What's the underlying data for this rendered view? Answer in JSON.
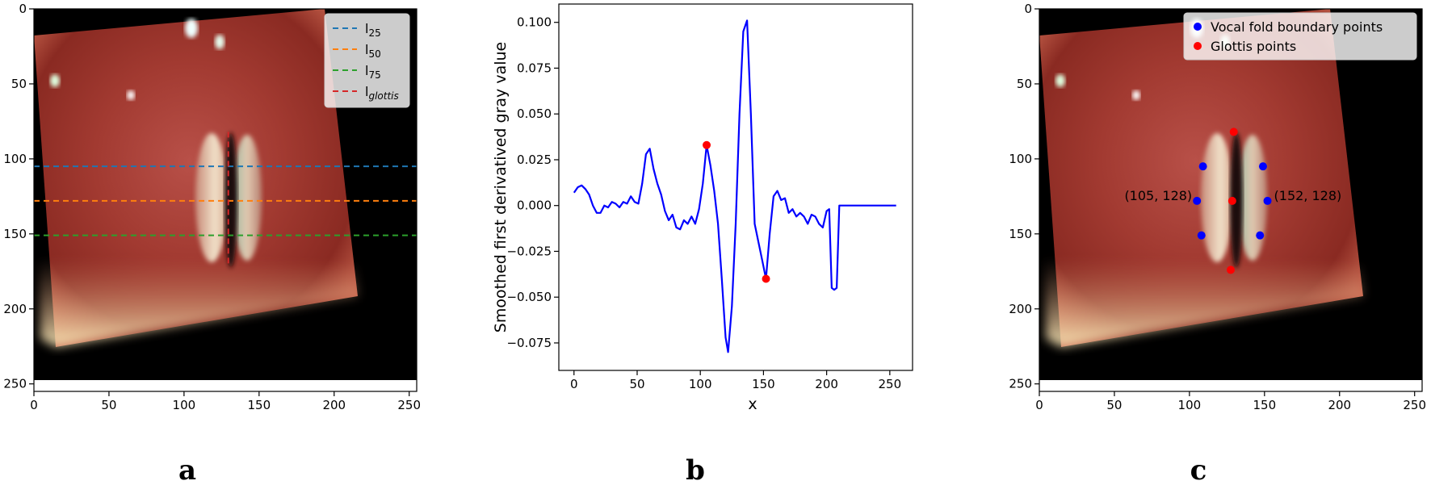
{
  "chart_data": [
    {
      "panel": "a",
      "type": "image",
      "xlim": [
        0,
        255
      ],
      "ylim": [
        255,
        0
      ],
      "xticks": [
        0,
        50,
        100,
        150,
        200,
        250
      ],
      "yticks": [
        0,
        50,
        100,
        150,
        200,
        250
      ],
      "lines": [
        {
          "name_main": "l",
          "name_sub": "25",
          "orientation": "horizontal",
          "value": 105,
          "color": "#1f77b4"
        },
        {
          "name_main": "l",
          "name_sub": "50",
          "orientation": "horizontal",
          "value": 128,
          "color": "#ff7f0e"
        },
        {
          "name_main": "l",
          "name_sub": "75",
          "orientation": "horizontal",
          "value": 151,
          "color": "#2ca02c"
        },
        {
          "name_main": "l",
          "name_sub": "glottis",
          "orientation": "vertical",
          "value": 129.5,
          "color": "#d62728"
        }
      ],
      "legend_position": "upper right",
      "glottis_line_range": [
        82,
        172
      ]
    },
    {
      "panel": "b",
      "type": "line",
      "xlabel": "x",
      "ylabel": "Smoothed first derivatived gray value",
      "xlim": [
        -12,
        268
      ],
      "ylim": [
        -0.09,
        0.11
      ],
      "xticks": [
        0,
        50,
        100,
        150,
        200,
        250
      ],
      "yticks": [
        -0.075,
        -0.05,
        -0.025,
        0.0,
        0.025,
        0.05,
        0.075,
        0.1
      ],
      "ytick_labels": [
        "−0.075",
        "−0.050",
        "−0.025",
        "0.000",
        "0.025",
        "0.050",
        "0.075",
        "0.100"
      ],
      "series_color": "#0000ff",
      "x": [
        0,
        3,
        6,
        9,
        12,
        15,
        18,
        21,
        24,
        27,
        30,
        33,
        36,
        39,
        42,
        45,
        48,
        51,
        54,
        57,
        60,
        63,
        66,
        69,
        72,
        75,
        78,
        81,
        84,
        87,
        90,
        93,
        96,
        99,
        102,
        105,
        108,
        111,
        114,
        117,
        120,
        122,
        125,
        128,
        131,
        134,
        137,
        140,
        143,
        146,
        149,
        152,
        155,
        158,
        161,
        164,
        167,
        170,
        173,
        176,
        179,
        182,
        185,
        188,
        191,
        194,
        197,
        200,
        202,
        204,
        206,
        208,
        210,
        215,
        225,
        235,
        245,
        255
      ],
      "y": [
        0.007,
        0.01,
        0.011,
        0.009,
        0.006,
        0.0,
        -0.004,
        -0.004,
        0.0,
        -0.001,
        0.002,
        0.001,
        -0.001,
        0.002,
        0.001,
        0.005,
        0.002,
        0.001,
        0.012,
        0.028,
        0.031,
        0.02,
        0.012,
        0.006,
        -0.003,
        -0.008,
        -0.005,
        -0.012,
        -0.013,
        -0.008,
        -0.01,
        -0.006,
        -0.01,
        -0.002,
        0.012,
        0.033,
        0.022,
        0.008,
        -0.01,
        -0.04,
        -0.072,
        -0.08,
        -0.055,
        -0.01,
        0.05,
        0.095,
        0.101,
        0.05,
        -0.01,
        -0.02,
        -0.03,
        -0.04,
        -0.015,
        0.005,
        0.008,
        0.003,
        0.004,
        -0.004,
        -0.002,
        -0.006,
        -0.004,
        -0.006,
        -0.01,
        -0.005,
        -0.006,
        -0.01,
        -0.012,
        -0.003,
        -0.002,
        -0.045,
        -0.046,
        -0.045,
        0.0,
        0.0,
        0.0,
        0.0,
        0.0,
        0.0
      ],
      "markers": [
        {
          "x": 105,
          "y": 0.033,
          "color": "#ff0000"
        },
        {
          "x": 152,
          "y": -0.04,
          "color": "#ff0000"
        }
      ]
    },
    {
      "panel": "c",
      "type": "image",
      "xlim": [
        0,
        255
      ],
      "ylim": [
        255,
        0
      ],
      "xticks": [
        0,
        50,
        100,
        150,
        200,
        250
      ],
      "yticks": [
        0,
        50,
        100,
        150,
        200,
        250
      ],
      "legend_position": "upper right",
      "series": [
        {
          "name": "Vocal fold boundary points",
          "color": "#0000ff",
          "points": [
            [
              109,
              105
            ],
            [
              149,
              105
            ],
            [
              105,
              128
            ],
            [
              152,
              128
            ],
            [
              108,
              151
            ],
            [
              147,
              151
            ]
          ]
        },
        {
          "name": "Glottis points",
          "color": "#ff0000",
          "points": [
            [
              129.5,
              82
            ],
            [
              128.5,
              128
            ],
            [
              127.5,
              174
            ]
          ]
        }
      ],
      "annotations": [
        {
          "text": "(105, 128)",
          "x": 105,
          "y": 128,
          "anchor": "end"
        },
        {
          "text": "(152, 128)",
          "x": 152,
          "y": 128,
          "anchor": "start"
        }
      ]
    }
  ],
  "tick_labels": [
    "0",
    "50",
    "100",
    "150",
    "200",
    "250"
  ],
  "panel_labels": [
    "a",
    "b",
    "c"
  ]
}
